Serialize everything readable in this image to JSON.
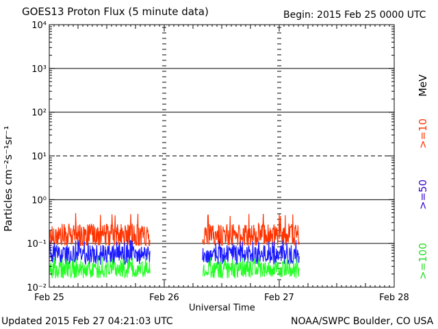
{
  "header": {
    "title": "GOES13 Proton Flux (5 minute data)",
    "begin": "Begin: 2015 Feb 25 0000 UTC"
  },
  "footer": {
    "updated": "Updated 2015 Feb 27 04:21:03 UTC",
    "credit": "NOAA/SWPC Boulder, CO USA"
  },
  "chart_data": {
    "type": "line",
    "title": "GOES13 Proton Flux (5 minute data)",
    "xlabel": "Universal Time",
    "ylabel": "Particles cm⁻²s⁻¹sr⁻¹",
    "y_scale": "log",
    "ylim": [
      0.01,
      10000
    ],
    "x_ticks": [
      "Feb 25",
      "Feb 26",
      "Feb 27",
      "Feb 28"
    ],
    "y_ticks": [
      "10⁻²",
      "10⁻¹",
      "10⁰",
      "10¹",
      "10²",
      "10³",
      "10⁴"
    ],
    "legend_unit": "MeV",
    "data_gaps": [
      [
        "Feb 25 21:00",
        "Feb 26 08:00"
      ]
    ],
    "x_data_range": [
      "Feb 25 00:00",
      "Feb 27 04:15"
    ],
    "threshold_line": {
      "label": "10¹",
      "style": "dashed",
      "value": 10
    },
    "series": [
      {
        "name": ">=10",
        "color": "#ff3300",
        "typical": 0.15,
        "range": [
          0.09,
          0.5
        ]
      },
      {
        "name": ">=50",
        "color": "#1a1aff",
        "typical": 0.055,
        "range": [
          0.03,
          0.12
        ]
      },
      {
        "name": ">=100",
        "color": "#22ff22",
        "typical": 0.025,
        "range": [
          0.015,
          0.05
        ]
      }
    ]
  }
}
